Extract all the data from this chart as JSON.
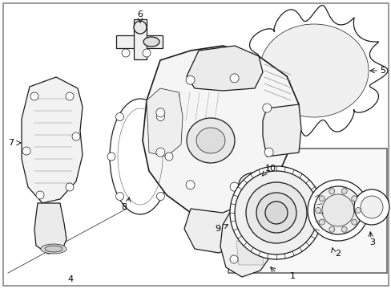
{
  "bg_color": "#ffffff",
  "border_color": "#888888",
  "line_color": "#1a1a1a",
  "light_gray": "#f5f5f5",
  "mid_gray": "#e0e0e0",
  "dark_gray": "#cccccc"
}
